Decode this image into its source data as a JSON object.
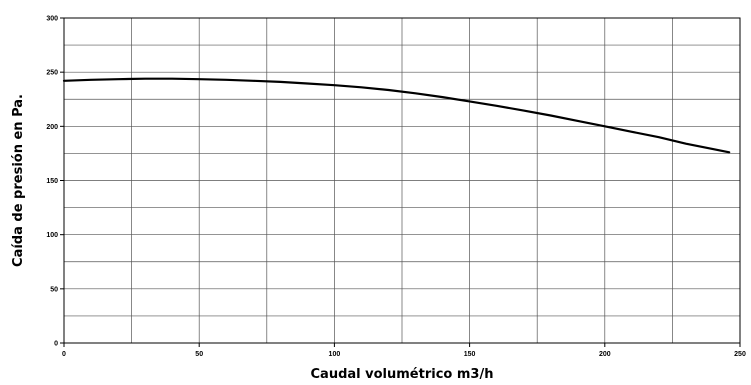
{
  "chart_data": {
    "type": "line",
    "title": "",
    "xlabel": "Caudal volumétrico m3/h",
    "ylabel": "Caída de presión en Pa.",
    "xlim": [
      0,
      250
    ],
    "ylim": [
      0,
      300
    ],
    "x_ticks": [
      0,
      50,
      100,
      150,
      200,
      250
    ],
    "y_ticks": [
      0,
      50,
      100,
      150,
      200,
      250,
      300
    ],
    "x_gridlines": [
      25,
      50,
      75,
      100,
      125,
      150,
      175,
      200,
      225
    ],
    "y_gridlines": [
      25,
      50,
      75,
      100,
      125,
      150,
      175,
      200,
      225,
      250,
      275
    ],
    "grid": true,
    "legend": "none",
    "line_color": "#000000",
    "series": [
      {
        "x": [
          0,
          10,
          20,
          30,
          40,
          50,
          60,
          70,
          80,
          90,
          100,
          110,
          120,
          130,
          140,
          150,
          160,
          170,
          180,
          190,
          200,
          210,
          220,
          230,
          240,
          246
        ],
        "values": [
          242,
          243,
          243.5,
          244,
          244,
          243.5,
          243,
          242,
          241,
          239.5,
          238,
          236,
          233.5,
          230.5,
          227,
          223,
          219,
          214.5,
          210,
          205,
          200,
          195,
          190,
          184,
          179,
          176
        ]
      }
    ]
  }
}
